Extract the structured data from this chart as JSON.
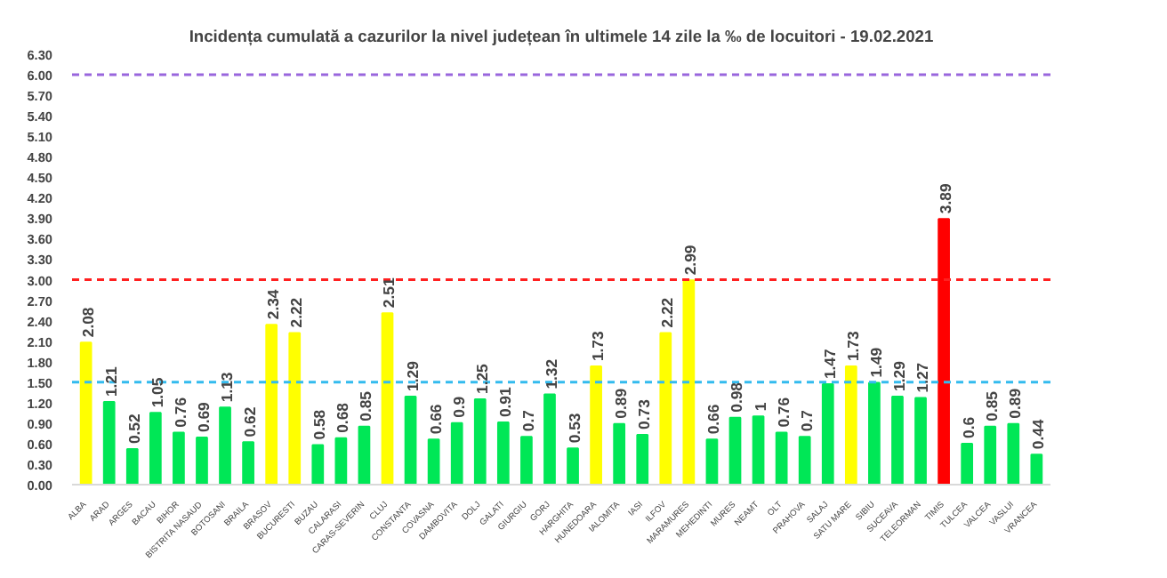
{
  "chart_data": {
    "type": "bar",
    "title": "Incidența cumulată a cazurilor la nivel județean în ultimele 14 zile la ‰ de locuitori - 19.02.2021",
    "categories": [
      "ALBA",
      "ARAD",
      "ARGES",
      "BACAU",
      "BIHOR",
      "BISTRITA NASAUD",
      "BOTOSANI",
      "BRAILA",
      "BRASOV",
      "BUCURESTI",
      "BUZAU",
      "CALARASI",
      "CARAS-SEVERIN",
      "CLUJ",
      "CONSTANTA",
      "COVASNA",
      "DAMBOVITA",
      "DOLJ",
      "GALATI",
      "GIURGIU",
      "GORJ",
      "HARGHITA",
      "HUNEDOARA",
      "IALOMITA",
      "IASI",
      "ILFOV",
      "MARAMURES",
      "MEHEDINTI",
      "MURES",
      "NEAMT",
      "OLT",
      "PRAHOVA",
      "SALAJ",
      "SATU MARE",
      "SIBIU",
      "SUCEAVA",
      "TELEORMAN",
      "TIMIS",
      "TULCEA",
      "VALCEA",
      "VASLUI",
      "VRANCEA"
    ],
    "values": [
      2.08,
      1.21,
      0.52,
      1.05,
      0.76,
      0.69,
      1.13,
      0.62,
      2.34,
      2.22,
      0.58,
      0.68,
      0.85,
      2.51,
      1.29,
      0.66,
      0.9,
      1.25,
      0.91,
      0.7,
      1.32,
      0.53,
      1.73,
      0.89,
      0.73,
      2.22,
      2.99,
      0.66,
      0.98,
      1,
      0.76,
      0.7,
      1.47,
      1.73,
      1.49,
      1.29,
      1.27,
      3.89,
      0.6,
      0.85,
      0.89,
      0.44
    ],
    "colors": [
      "#ffff00",
      "#00e756",
      "#00e756",
      "#00e756",
      "#00e756",
      "#00e756",
      "#00e756",
      "#00e756",
      "#ffff00",
      "#ffff00",
      "#00e756",
      "#00e756",
      "#00e756",
      "#ffff00",
      "#00e756",
      "#00e756",
      "#00e756",
      "#00e756",
      "#00e756",
      "#00e756",
      "#00e756",
      "#00e756",
      "#ffff00",
      "#00e756",
      "#00e756",
      "#ffff00",
      "#ffff00",
      "#00e756",
      "#00e756",
      "#00e756",
      "#00e756",
      "#00e756",
      "#00e756",
      "#ffff00",
      "#00e756",
      "#00e756",
      "#00e756",
      "#ff0000",
      "#00e756",
      "#00e756",
      "#00e756",
      "#00e756"
    ],
    "ylim": [
      0,
      6.3
    ],
    "yticks": [
      {
        "value": 0,
        "label": "0.00"
      },
      {
        "value": 0.3,
        "label": "0.30"
      },
      {
        "value": 0.6,
        "label": "0.60"
      },
      {
        "value": 0.9,
        "label": "0.90"
      },
      {
        "value": 1.2,
        "label": "1.20"
      },
      {
        "value": 1.5,
        "label": "1.50"
      },
      {
        "value": 1.8,
        "label": "1.80"
      },
      {
        "value": 2.1,
        "label": "2.10"
      },
      {
        "value": 2.4,
        "label": "2.40"
      },
      {
        "value": 2.7,
        "label": "2.70"
      },
      {
        "value": 3.0,
        "label": "3.00"
      },
      {
        "value": 3.3,
        "label": "3.30"
      },
      {
        "value": 3.6,
        "label": "3.60"
      },
      {
        "value": 3.9,
        "label": "3.90"
      },
      {
        "value": 4.2,
        "label": "4.20"
      },
      {
        "value": 4.5,
        "label": "4.50"
      },
      {
        "value": 4.8,
        "label": "4.80"
      },
      {
        "value": 5.1,
        "label": "5.10"
      },
      {
        "value": 5.4,
        "label": "5.40"
      },
      {
        "value": 5.7,
        "label": "5.70"
      },
      {
        "value": 6.0,
        "label": "6.00"
      },
      {
        "value": 6.3,
        "label": "6.30"
      }
    ],
    "ref_lines": [
      {
        "axis": "y",
        "value": 6.0,
        "color": "#9966dd",
        "line_style": "dashed"
      },
      {
        "axis": "y",
        "value": 3.0,
        "color": "#ff2020",
        "line_style": "dashed"
      },
      {
        "axis": "y",
        "value": 1.5,
        "color": "#33bbee",
        "line_style": "dashed"
      }
    ],
    "data_labels": true
  }
}
